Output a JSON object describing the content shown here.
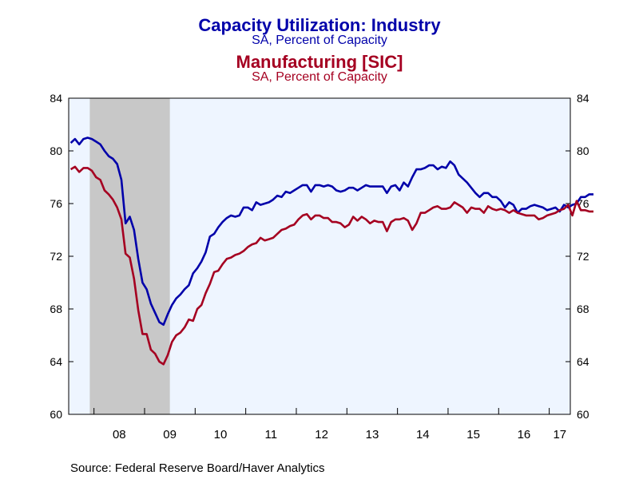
{
  "title_1": "Capacity Utilization: Industry",
  "subtitle_1": "SA, Percent of Capacity",
  "title_2": "Manufacturing [SIC]",
  "subtitle_2": "SA, Percent of Capacity",
  "source": "Source:  Federal Reserve Board/Haver Analytics",
  "colors": {
    "series_1": "#0000aa",
    "series_2": "#a50021",
    "plot_background": "#eef5ff",
    "recession": "#c8c8c8"
  },
  "chart_data": {
    "type": "line",
    "x_start": "2007-07",
    "x_end": "2017-05",
    "x_frequency": "monthly",
    "x_tick_labels": [
      "08",
      "09",
      "10",
      "11",
      "12",
      "13",
      "14",
      "15",
      "16",
      "17"
    ],
    "ylim": [
      60,
      84
    ],
    "y_ticks": [
      60,
      64,
      68,
      72,
      76,
      80,
      84
    ],
    "grid": false,
    "recession_shading": [
      {
        "start": "2007-12",
        "end": "2009-06"
      }
    ],
    "series": [
      {
        "name": "Capacity Utilization: Industry",
        "axis": "left",
        "values": [
          80.6,
          80.9,
          80.5,
          80.9,
          81.0,
          80.9,
          80.7,
          80.5,
          80.0,
          79.6,
          79.4,
          79.0,
          77.8,
          74.5,
          75.0,
          74.0,
          71.8,
          70.0,
          69.5,
          68.4,
          67.7,
          67.0,
          66.8,
          67.6,
          68.3,
          68.8,
          69.1,
          69.5,
          69.8,
          70.7,
          71.1,
          71.6,
          72.3,
          73.5,
          73.7,
          74.2,
          74.6,
          74.9,
          75.1,
          75.0,
          75.1,
          75.7,
          75.7,
          75.5,
          76.1,
          75.9,
          76.0,
          76.1,
          76.3,
          76.6,
          76.5,
          76.9,
          76.8,
          77.0,
          77.2,
          77.4,
          77.4,
          76.9,
          77.4,
          77.4,
          77.3,
          77.4,
          77.3,
          77.0,
          76.9,
          77.0,
          77.2,
          77.2,
          77.0,
          77.2,
          77.4,
          77.3,
          77.3,
          77.3,
          77.3,
          76.8,
          77.3,
          77.4,
          77.0,
          77.6,
          77.3,
          78.0,
          78.6,
          78.6,
          78.7,
          78.9,
          78.9,
          78.6,
          78.8,
          78.7,
          79.2,
          78.9,
          78.2,
          77.9,
          77.6,
          77.2,
          76.8,
          76.5,
          76.8,
          76.8,
          76.5,
          76.5,
          76.2,
          75.7,
          76.1,
          75.9,
          75.3,
          75.6,
          75.6,
          75.8,
          75.9,
          75.8,
          75.7,
          75.5,
          75.6,
          75.7,
          75.4,
          75.9,
          75.7,
          75.9,
          76.0,
          76.5,
          76.5,
          76.7,
          76.7
        ]
      },
      {
        "name": "Manufacturing [SIC]",
        "axis": "left",
        "values": [
          78.6,
          78.8,
          78.4,
          78.7,
          78.7,
          78.5,
          78.0,
          77.8,
          77.0,
          76.7,
          76.3,
          75.7,
          74.8,
          72.2,
          71.9,
          70.3,
          67.9,
          66.1,
          66.1,
          64.9,
          64.6,
          64.0,
          63.8,
          64.5,
          65.5,
          66.0,
          66.2,
          66.6,
          67.2,
          67.1,
          68.0,
          68.3,
          69.2,
          69.9,
          70.8,
          70.9,
          71.4,
          71.8,
          71.9,
          72.1,
          72.2,
          72.4,
          72.7,
          72.9,
          73.0,
          73.4,
          73.2,
          73.3,
          73.4,
          73.7,
          74.0,
          74.1,
          74.3,
          74.4,
          74.8,
          75.1,
          75.2,
          74.8,
          75.1,
          75.1,
          74.9,
          74.9,
          74.6,
          74.6,
          74.5,
          74.2,
          74.4,
          75.0,
          74.7,
          75.0,
          74.8,
          74.5,
          74.7,
          74.6,
          74.6,
          73.9,
          74.6,
          74.8,
          74.8,
          74.9,
          74.7,
          74.0,
          74.5,
          75.3,
          75.3,
          75.5,
          75.7,
          75.8,
          75.6,
          75.6,
          75.7,
          76.1,
          75.9,
          75.7,
          75.3,
          75.7,
          75.6,
          75.6,
          75.3,
          75.8,
          75.6,
          75.5,
          75.6,
          75.5,
          75.3,
          75.5,
          75.3,
          75.2,
          75.1,
          75.1,
          75.1,
          74.8,
          74.9,
          75.1,
          75.2,
          75.3,
          75.5,
          75.6,
          75.9,
          75.1,
          76.2,
          75.5,
          75.5,
          75.4,
          75.4
        ]
      }
    ]
  }
}
